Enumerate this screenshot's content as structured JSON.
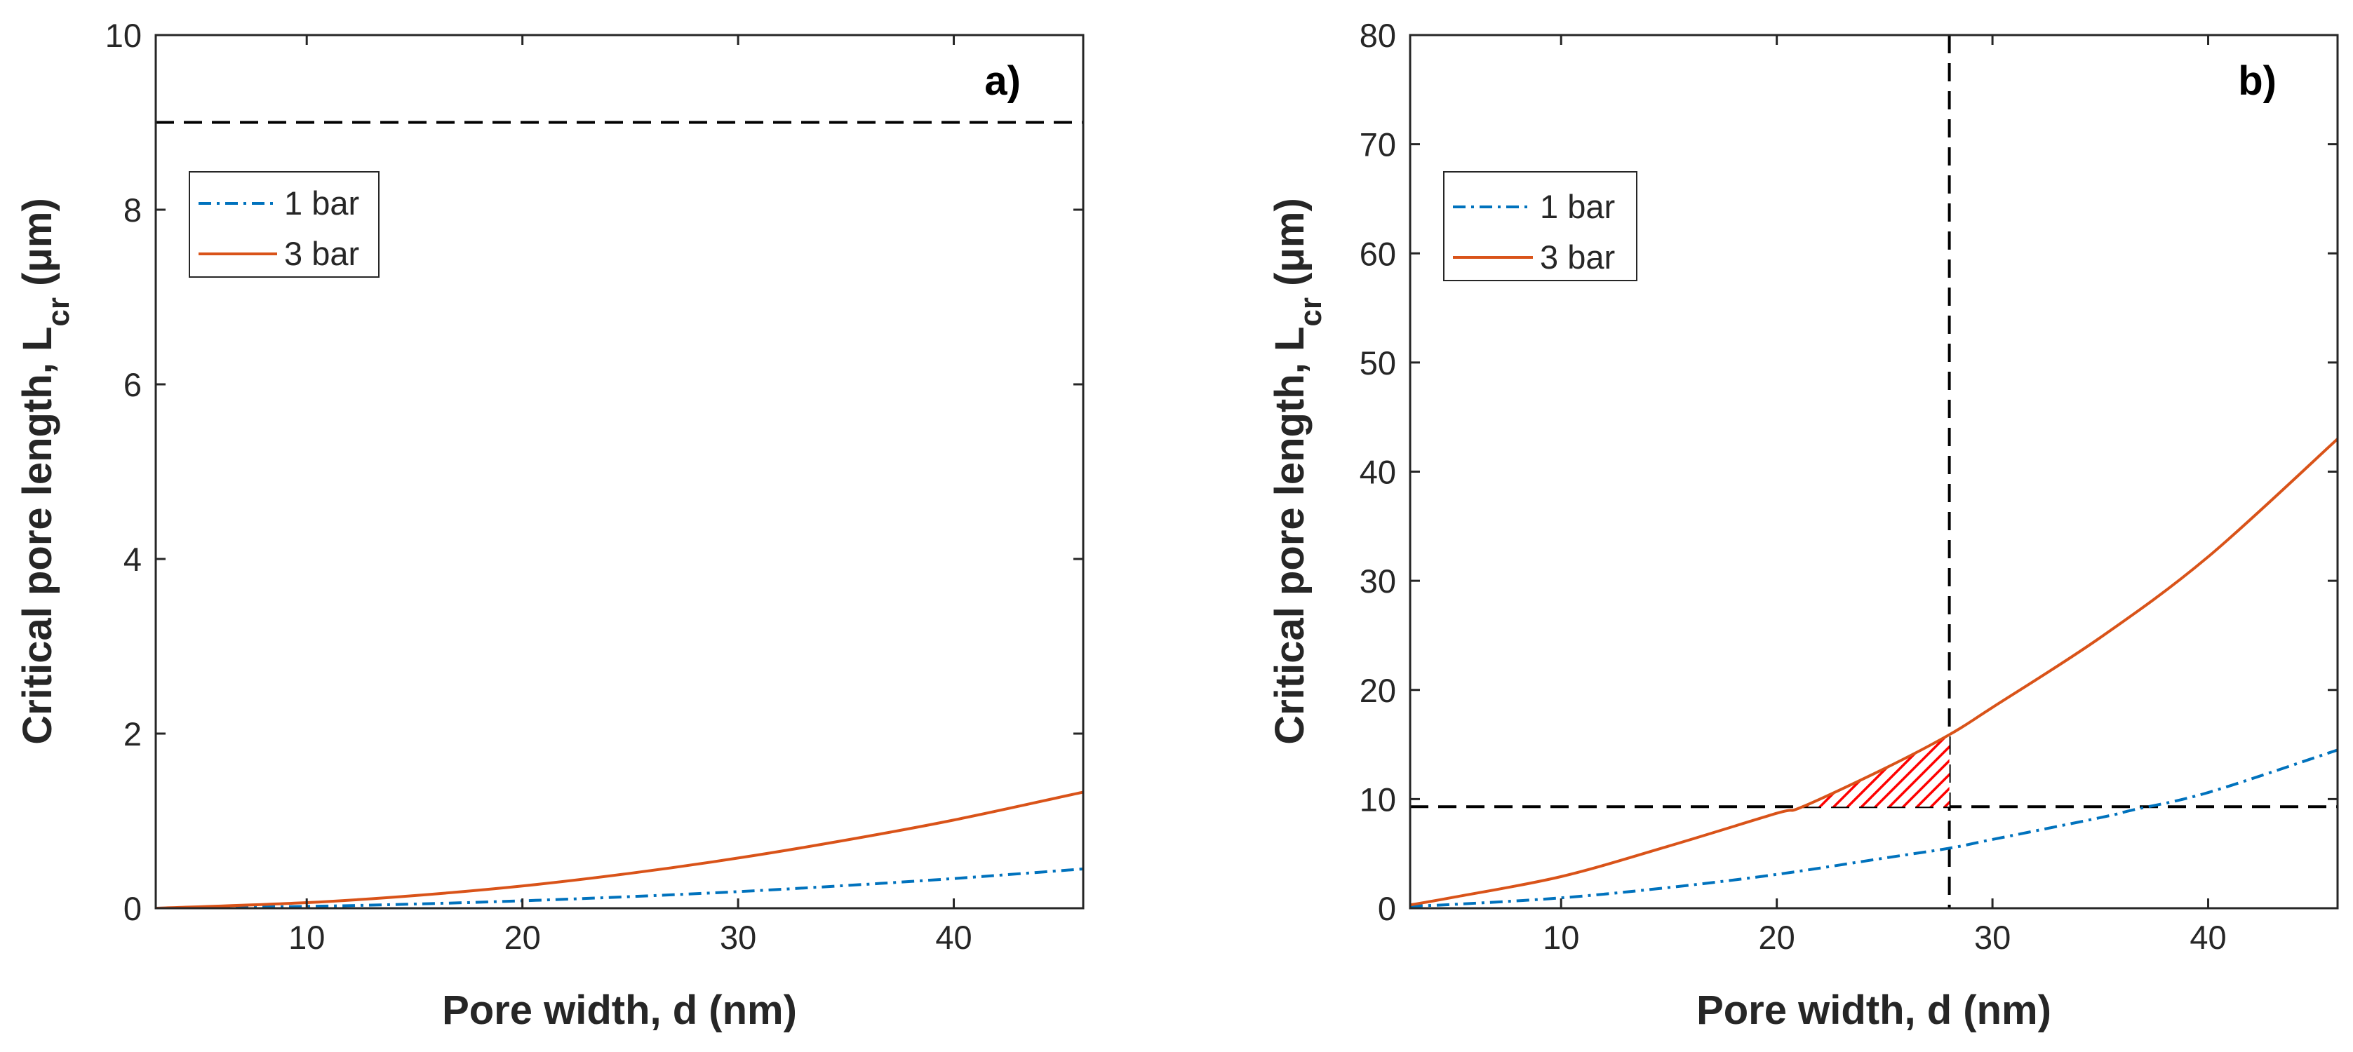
{
  "chart_data": [
    {
      "type": "line",
      "panel_label": "a)",
      "xlabel": "Pore width, d (nm)",
      "ylabel": {
        "main": "Critical pore length, L",
        "sub": "cr",
        "unit": " (μm)"
      },
      "xlim": [
        3,
        46
      ],
      "ylim": [
        0,
        10
      ],
      "xticks": [
        10,
        20,
        30,
        40
      ],
      "yticks": [
        0,
        2,
        4,
        6,
        8,
        10
      ],
      "legend": {
        "location": "upper-left"
      },
      "series": [
        {
          "name": "1 bar",
          "style": "dash-dot",
          "color": "#0072BD",
          "x": [
            3,
            10,
            15,
            20,
            25,
            30,
            35,
            40,
            46
          ],
          "y": [
            0.0,
            0.021,
            0.048,
            0.085,
            0.133,
            0.19,
            0.26,
            0.34,
            0.45
          ]
        },
        {
          "name": "3 bar",
          "style": "solid",
          "color": "#D95319",
          "x": [
            3,
            10,
            15,
            20,
            25,
            30,
            35,
            40,
            46
          ],
          "y": [
            0.0,
            0.064,
            0.145,
            0.255,
            0.4,
            0.575,
            0.78,
            1.01,
            1.33
          ]
        }
      ],
      "reference_lines": [
        {
          "orientation": "horizontal",
          "value": 9,
          "style": "dashed",
          "color": "#000000"
        }
      ]
    },
    {
      "type": "line",
      "panel_label": "b)",
      "xlabel": "Pore width, d (nm)",
      "ylabel": {
        "main": "Critical pore length, L",
        "sub": "cr",
        "unit": " (μm)"
      },
      "xlim": [
        3,
        46
      ],
      "ylim": [
        0,
        80
      ],
      "xticks": [
        10,
        20,
        30,
        40
      ],
      "yticks": [
        0,
        10,
        20,
        30,
        40,
        50,
        60,
        70,
        80
      ],
      "legend": {
        "location": "upper-left"
      },
      "series": [
        {
          "name": "1 bar",
          "style": "dash-dot",
          "color": "#0072BD",
          "x": [
            3,
            5,
            10,
            15,
            20,
            25,
            28,
            30,
            35,
            36.5,
            40,
            46
          ],
          "y": [
            0.2,
            0.35,
            0.95,
            1.9,
            3.1,
            4.6,
            5.5,
            6.3,
            8.3,
            9.0,
            10.6,
            14.5
          ]
        },
        {
          "name": "3 bar",
          "style": "solid",
          "color": "#D95319",
          "x": [
            3,
            5,
            10,
            15,
            20,
            21.2,
            25,
            28,
            30,
            35,
            40,
            46
          ],
          "y": [
            0.3,
            1.0,
            2.9,
            5.7,
            8.7,
            9.3,
            12.8,
            15.9,
            18.4,
            24.8,
            32.2,
            43.0
          ]
        }
      ],
      "reference_lines": [
        {
          "orientation": "horizontal",
          "value": 9.3,
          "style": "dashed",
          "color": "#000000"
        },
        {
          "orientation": "vertical",
          "value": 28,
          "style": "dashed",
          "color": "#000000"
        }
      ],
      "shaded_region": {
        "between": [
          "3 bar",
          "y=9.3"
        ],
        "x_range": [
          21.2,
          28
        ],
        "fill": "#FF0000",
        "pattern": "diagonal-hatch"
      }
    }
  ]
}
